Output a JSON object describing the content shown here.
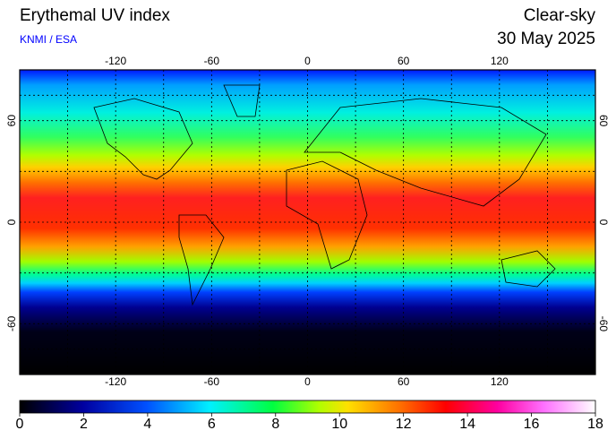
{
  "map": {
    "title": "Erythemal UV index",
    "source": "KNMI / ESA",
    "mode": "Clear-sky",
    "date": "30 May 2025",
    "lonlim": [
      -180,
      180
    ],
    "latlim": [
      -90,
      90
    ],
    "lon_ticks": [
      -120,
      -60,
      0,
      60,
      120
    ],
    "lat_ticks": [
      60,
      0,
      -60
    ],
    "colorbar": {
      "lim": [
        0,
        18
      ],
      "ticks": [
        0,
        2,
        4,
        6,
        8,
        10,
        12,
        14,
        16,
        18
      ]
    }
  }
}
